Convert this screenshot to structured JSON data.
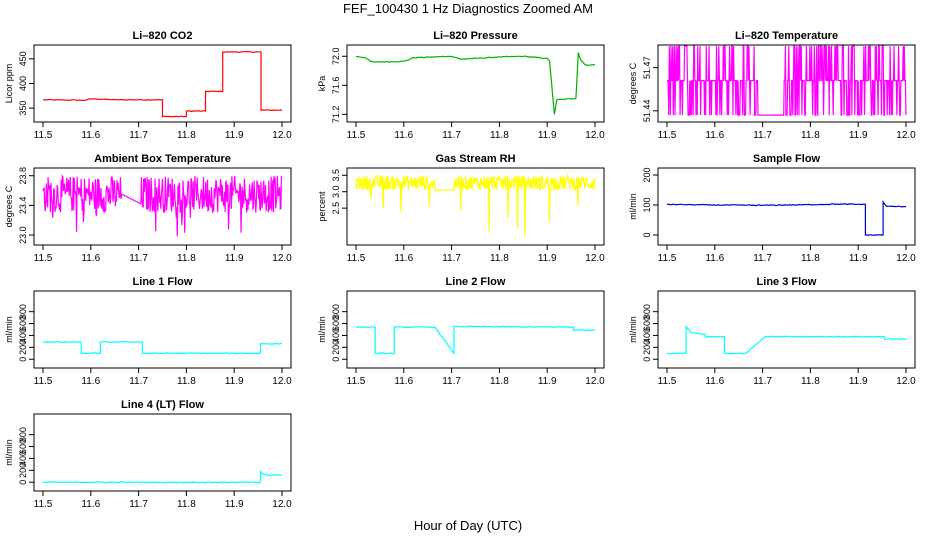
{
  "figure": {
    "title": "FEF_100430  1 Hz Diagnostics Zoomed AM",
    "xlabel": "Hour of Day (UTC)"
  },
  "chart_data": [
    {
      "type": "line",
      "title": "Li–820 CO2",
      "ylabel": "Licor ppm",
      "color": "#ff0000",
      "xlim": [
        11.5,
        12.0
      ],
      "ylim": [
        330,
        470
      ],
      "xticks": [
        11.5,
        11.6,
        11.7,
        11.8,
        11.9,
        12.0
      ],
      "xticklabels": [
        "11.5",
        "11.6",
        "11.7",
        "11.8",
        "11.9",
        "12.0"
      ],
      "yticks": [
        350,
        400,
        450
      ],
      "yticklabels": [
        "350",
        "400",
        "450"
      ],
      "series": [
        {
          "name": "CO2",
          "x": [
            11.5,
            11.59,
            11.6,
            11.65,
            11.65,
            11.75,
            11.75,
            11.76,
            11.76,
            11.8,
            11.8,
            11.84,
            11.84,
            11.876,
            11.876,
            11.956,
            11.956,
            12.0
          ],
          "y": [
            367,
            366,
            369,
            367,
            367,
            367,
            333,
            333,
            333,
            333,
            344,
            344,
            384,
            384,
            464,
            464,
            346,
            346
          ]
        }
      ]
    },
    {
      "type": "line",
      "title": "Li–820 Pressure",
      "ylabel": "kPa",
      "color": "#00b000",
      "xlim": [
        11.5,
        12.0
      ],
      "ylim": [
        71.15,
        72.1
      ],
      "xticks": [
        11.5,
        11.6,
        11.7,
        11.8,
        11.9,
        12.0
      ],
      "xticklabels": [
        "11.5",
        "11.6",
        "11.7",
        "11.8",
        "11.9",
        "12.0"
      ],
      "yticks": [
        71.2,
        71.6,
        72.0
      ],
      "yticklabels": [
        "71.2",
        "71.6",
        "72.0"
      ],
      "series": [
        {
          "name": "Pressure",
          "x": [
            11.5,
            11.52,
            11.53,
            11.54,
            11.6,
            11.62,
            11.7,
            11.72,
            11.8,
            11.85,
            11.9,
            11.905,
            11.915,
            11.92,
            11.96,
            11.965,
            11.97,
            11.98,
            12.0
          ],
          "y": [
            72.0,
            71.98,
            71.93,
            71.92,
            71.93,
            71.98,
            72.0,
            71.96,
            71.99,
            72.0,
            71.97,
            71.93,
            71.2,
            71.4,
            71.42,
            72.05,
            71.95,
            71.88,
            71.88
          ]
        }
      ]
    },
    {
      "type": "line",
      "title": "Li–820 Temperature",
      "ylabel": "degrees C",
      "color": "#ff00ff",
      "xlim": [
        11.5,
        12.0
      ],
      "ylim": [
        51.435,
        51.483
      ],
      "xticks": [
        11.5,
        11.6,
        11.7,
        11.8,
        11.9,
        12.0
      ],
      "xticklabels": [
        "11.5",
        "11.6",
        "11.7",
        "11.8",
        "11.9",
        "12.0"
      ],
      "yticks": [
        51.44,
        51.47
      ],
      "yticklabels": [
        "51.44",
        "51.47"
      ],
      "series": [
        {
          "name": "Temperature",
          "pattern": "noise",
          "levels": [
            51.437,
            51.461,
            51.485
          ],
          "x": [
            11.5,
            12.0
          ]
        }
      ]
    },
    {
      "type": "line",
      "title": "Ambient Box Temperature",
      "ylabel": "degrees C",
      "color": "#ff00ff",
      "xlim": [
        11.5,
        12.0
      ],
      "ylim": [
        22.92,
        23.85
      ],
      "xticks": [
        11.5,
        11.6,
        11.7,
        11.8,
        11.9,
        12.0
      ],
      "xticklabels": [
        "11.5",
        "11.6",
        "11.7",
        "11.8",
        "11.9",
        "12.0"
      ],
      "yticks": [
        23.0,
        23.4,
        23.8
      ],
      "yticklabels": [
        "23.0",
        "23.4",
        "23.8"
      ],
      "series": [
        {
          "name": "Box Temp",
          "pattern": "noise",
          "band": [
            23.3,
            23.8
          ],
          "gap": [
            11.665,
            11.705
          ],
          "gap_line": [
            23.55,
            23.42
          ],
          "x": [
            11.5,
            12.0
          ]
        }
      ]
    },
    {
      "type": "line",
      "title": "Gas Stream RH",
      "ylabel": "percent",
      "color": "#ffff00",
      "xlim": [
        11.5,
        12.0
      ],
      "ylim": [
        1.5,
        3.6
      ],
      "xticks": [
        11.5,
        11.6,
        11.7,
        11.8,
        11.9,
        12.0
      ],
      "xticklabels": [
        "11.5",
        "11.6",
        "11.7",
        "11.8",
        "11.9",
        "12.0"
      ],
      "yticks": [
        2.5,
        3.0,
        3.5
      ],
      "yticklabels": [
        "2.5",
        "3.0",
        "3.5"
      ],
      "series": [
        {
          "name": "RH",
          "pattern": "noise",
          "band": [
            3.05,
            3.5
          ],
          "gap": [
            11.665,
            11.705
          ],
          "gap_line": [
            3.05,
            3.05
          ],
          "x": [
            11.5,
            12.0
          ]
        }
      ]
    },
    {
      "type": "line",
      "title": "Sample Flow",
      "ylabel": "ml/min",
      "color": "#0000cc",
      "xlim": [
        11.5,
        12.0
      ],
      "ylim": [
        -20,
        210
      ],
      "xticks": [
        11.5,
        11.6,
        11.7,
        11.8,
        11.9,
        12.0
      ],
      "xticklabels": [
        "11.5",
        "11.6",
        "11.7",
        "11.8",
        "11.9",
        "12.0"
      ],
      "yticks": [
        0,
        100,
        200
      ],
      "yticklabels": [
        "0",
        "100",
        "200"
      ],
      "series": [
        {
          "name": "Sample Flow",
          "x": [
            11.5,
            11.6,
            11.7,
            11.8,
            11.85,
            11.915,
            11.915,
            11.952,
            11.952,
            11.96,
            12.0
          ],
          "y": [
            102,
            100,
            99,
            101,
            103,
            102,
            0,
            0,
            110,
            95,
            95
          ]
        }
      ]
    },
    {
      "type": "line",
      "title": "Line 1 Flow",
      "ylabel": "ml/min",
      "color": "#00ffff",
      "xlim": [
        11.5,
        12.0
      ],
      "ylim": [
        -80,
        1080
      ],
      "xticks": [
        11.5,
        11.6,
        11.7,
        11.8,
        11.9,
        12.0
      ],
      "xticklabels": [
        "11.5",
        "11.6",
        "11.7",
        "11.8",
        "11.9",
        "12.0"
      ],
      "yticks": [
        0,
        200,
        400,
        600,
        800
      ],
      "yticklabels": [
        "0",
        "200",
        "400",
        "600",
        "800"
      ],
      "series": [
        {
          "name": "Line 1",
          "x": [
            11.5,
            11.58,
            11.58,
            11.62,
            11.62,
            11.708,
            11.708,
            11.955,
            11.955,
            12.0
          ],
          "y": [
            290,
            290,
            100,
            100,
            290,
            290,
            100,
            100,
            260,
            260
          ]
        }
      ]
    },
    {
      "type": "line",
      "title": "Line 2 Flow",
      "ylabel": "ml/min",
      "color": "#00ffff",
      "xlim": [
        11.5,
        12.0
      ],
      "ylim": [
        -80,
        1080
      ],
      "xticks": [
        11.5,
        11.6,
        11.7,
        11.8,
        11.9,
        12.0
      ],
      "xticklabels": [
        "11.5",
        "11.6",
        "11.7",
        "11.8",
        "11.9",
        "12.0"
      ],
      "yticks": [
        0,
        200,
        400,
        600,
        800
      ],
      "yticklabels": [
        "0",
        "200",
        "400",
        "600",
        "800"
      ],
      "series": [
        {
          "name": "Line 2",
          "x": [
            11.5,
            11.54,
            11.54,
            11.58,
            11.58,
            11.665,
            11.705,
            11.705,
            11.955,
            11.955,
            12.0
          ],
          "y": [
            540,
            540,
            100,
            100,
            540,
            540,
            100,
            550,
            540,
            490,
            490
          ]
        }
      ]
    },
    {
      "type": "line",
      "title": "Line 3 Flow",
      "ylabel": "ml/min",
      "color": "#00ffff",
      "xlim": [
        11.5,
        12.0
      ],
      "ylim": [
        -80,
        1080
      ],
      "xticks": [
        11.5,
        11.6,
        11.7,
        11.8,
        11.9,
        12.0
      ],
      "xticklabels": [
        "11.5",
        "11.6",
        "11.7",
        "11.8",
        "11.9",
        "12.0"
      ],
      "yticks": [
        0,
        200,
        400,
        600,
        800
      ],
      "yticklabels": [
        "0",
        "200",
        "400",
        "600",
        "800"
      ],
      "series": [
        {
          "name": "Line 3",
          "x": [
            11.5,
            11.54,
            11.54,
            11.55,
            11.58,
            11.58,
            11.62,
            11.62,
            11.665,
            11.705,
            11.955,
            11.955,
            12.0
          ],
          "y": [
            100,
            100,
            550,
            450,
            420,
            380,
            380,
            100,
            100,
            380,
            380,
            340,
            340
          ]
        }
      ]
    },
    {
      "type": "line",
      "title": "Line 4 (LT) Flow",
      "ylabel": "ml/min",
      "color": "#00ffff",
      "xlim": [
        11.5,
        12.0
      ],
      "ylim": [
        -80,
        1080
      ],
      "xticks": [
        11.5,
        11.6,
        11.7,
        11.8,
        11.9,
        12.0
      ],
      "xticklabels": [
        "11.5",
        "11.6",
        "11.7",
        "11.8",
        "11.9",
        "12.0"
      ],
      "yticks": [
        0,
        200,
        400,
        600,
        800
      ],
      "yticklabels": [
        "0",
        "200",
        "400",
        "600",
        "800"
      ],
      "series": [
        {
          "name": "Line 4",
          "x": [
            11.5,
            11.955,
            11.955,
            11.96,
            11.97,
            12.0
          ],
          "y": [
            0,
            0,
            180,
            140,
            120,
            120
          ]
        }
      ]
    }
  ]
}
